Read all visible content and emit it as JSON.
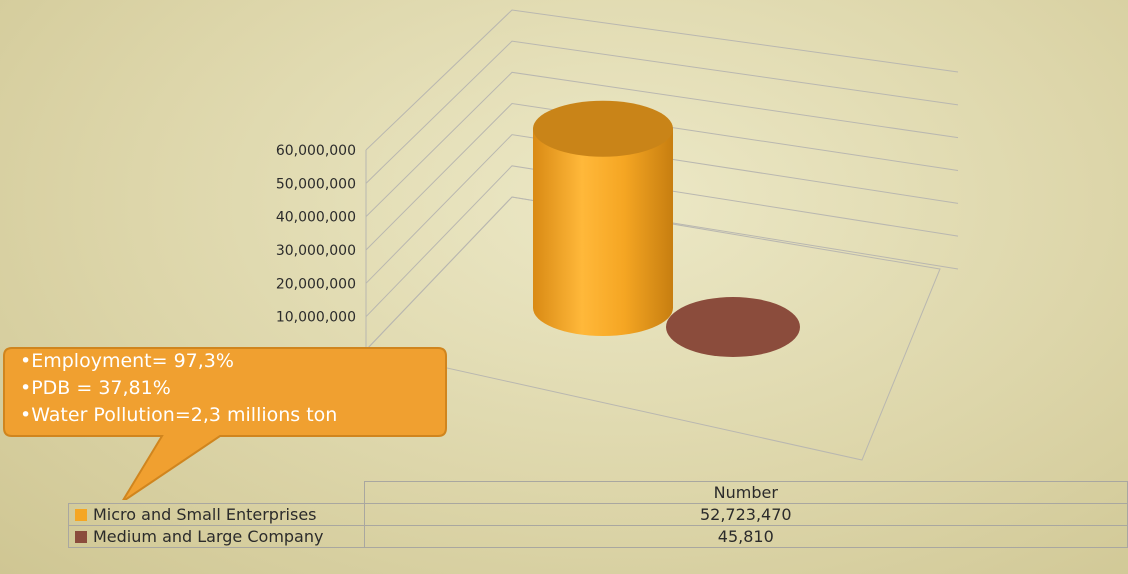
{
  "chart_data": {
    "type": "bar",
    "style": "3d-cylinder",
    "ylim": [
      0,
      60000000
    ],
    "yticks": [
      "10,000,000",
      "20,000,000",
      "30,000,000",
      "40,000,000",
      "50,000,000",
      "60,000,000"
    ],
    "column_header": "Number",
    "series": [
      {
        "name": "Micro and Small Enterprises",
        "value": 52723470,
        "label": "52,723,470",
        "color": "#f5a623"
      },
      {
        "name": "Medium and Large Company",
        "value": 45810,
        "label": "45,810",
        "color": "#8b4c3c"
      }
    ]
  },
  "callout": {
    "bullet": "•",
    "color": "#f0a030",
    "lines": [
      "Employment= 97,3%",
      "PDB = 37,81%",
      "Water Pollution=2,3  millions ton"
    ]
  }
}
